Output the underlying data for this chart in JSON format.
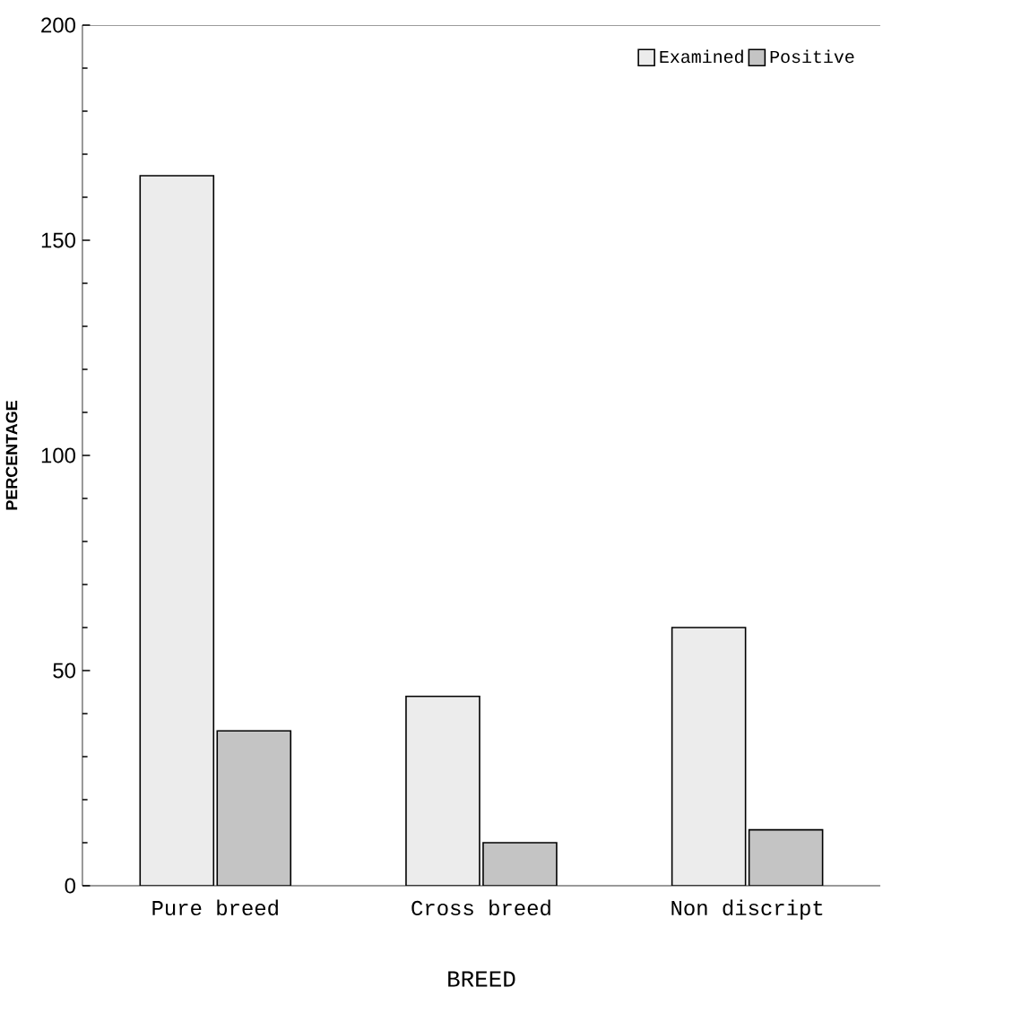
{
  "chart_data": {
    "type": "bar",
    "xlabel": "BREED",
    "ylabel": "PERCENTAGE",
    "categories": [
      "Pure breed",
      "Cross breed",
      "Non discript"
    ],
    "series": [
      {
        "name": "Examined",
        "color": "#ececec",
        "values": [
          165,
          44,
          60
        ]
      },
      {
        "name": "Positive",
        "color": "#c4c4c4",
        "values": [
          36,
          10,
          13
        ]
      }
    ],
    "ylim": [
      0,
      200
    ],
    "yticks": [
      0,
      50,
      100,
      150,
      200
    ],
    "grid": false,
    "legend": "top right"
  }
}
